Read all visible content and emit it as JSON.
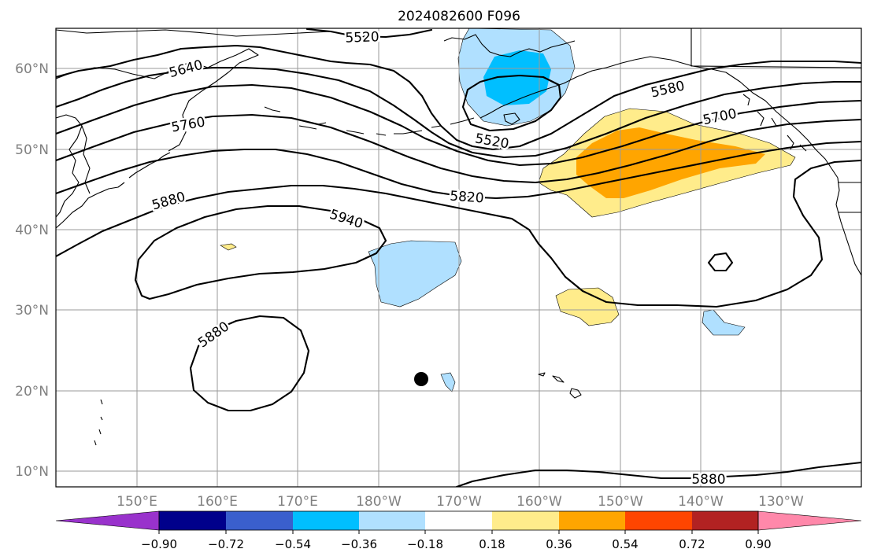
{
  "title": "2024082600 F096",
  "longitude_ticks": [
    "150°E",
    "160°E",
    "170°E",
    "180°W",
    "170°W",
    "160°W",
    "150°W",
    "140°W",
    "130°W"
  ],
  "latitude_ticks": [
    "10°N",
    "20°N",
    "30°N",
    "40°N",
    "50°N",
    "60°N"
  ],
  "colorbar": {
    "tick_labels": [
      "−0.90",
      "−0.72",
      "−0.54",
      "−0.36",
      "−0.18",
      "0.18",
      "0.36",
      "0.54",
      "0.72",
      "0.90"
    ],
    "colors": [
      "#9932cc",
      "#00008b",
      "#3a5fcd",
      "#00bfff",
      "#b0e0ff",
      "#ffffff",
      "#ffec8b",
      "#ffa500",
      "#ff4500",
      "#b22222",
      "#ff88aa"
    ]
  },
  "contour_labels": {
    "c5520_top": "5520",
    "c5640": "5640",
    "c5760": "5760",
    "c5880_west": "5880",
    "c5520_low": "5520",
    "c5580": "5580",
    "c5700": "5700",
    "c5820": "5820",
    "c5940": "5940",
    "c5880_sw": "5880",
    "c5880_south": "5880"
  },
  "storm_marker": "black-dot"
}
